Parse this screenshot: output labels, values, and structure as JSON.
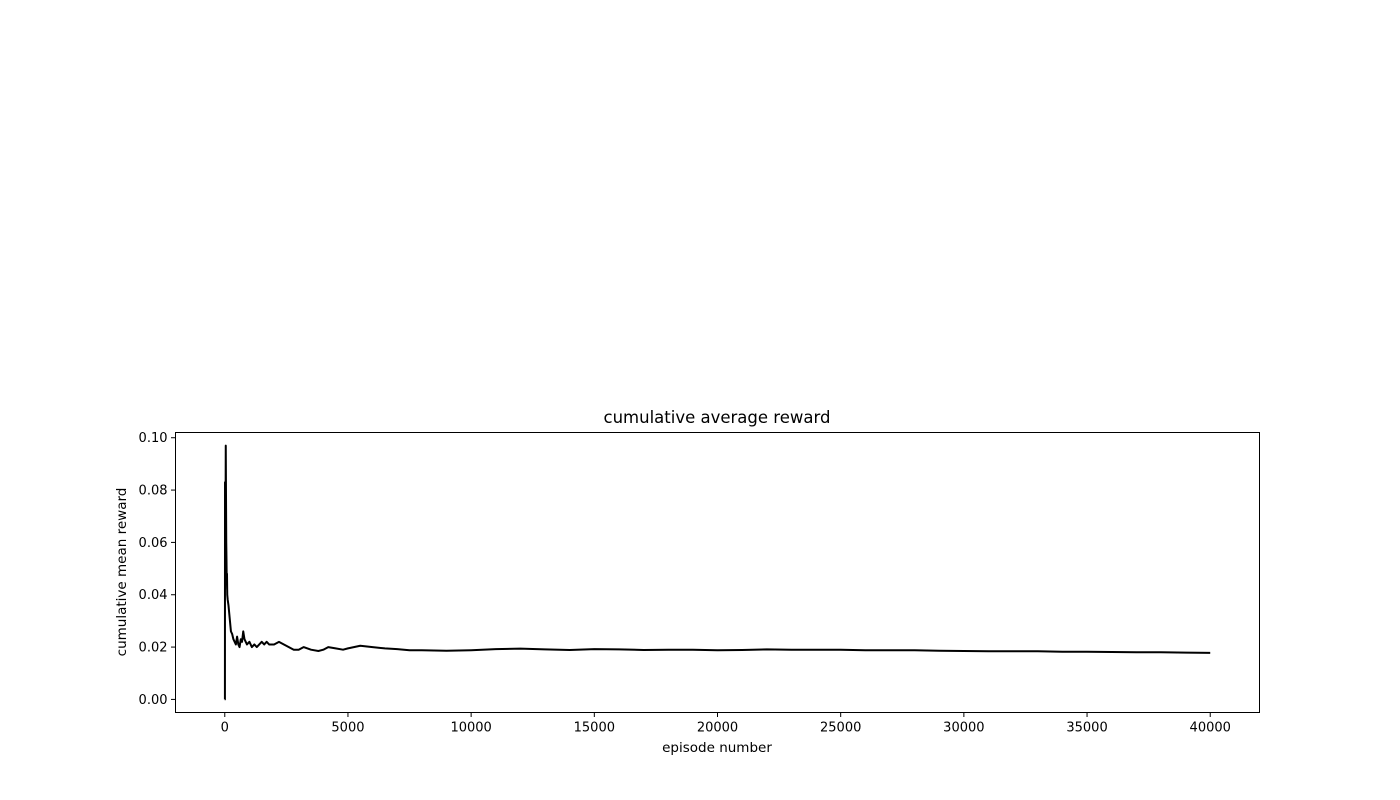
{
  "chart_data": {
    "type": "line",
    "title": "cumulative average reward",
    "xlabel": "episode number",
    "ylabel": "cumulative mean reward",
    "xlim": [
      -2000,
      42000
    ],
    "ylim": [
      -0.005,
      0.102
    ],
    "xticks": [
      0,
      5000,
      10000,
      15000,
      20000,
      25000,
      30000,
      35000,
      40000
    ],
    "xtick_labels": [
      "0",
      "5000",
      "10000",
      "15000",
      "20000",
      "25000",
      "30000",
      "35000",
      "40000"
    ],
    "yticks": [
      0.0,
      0.02,
      0.04,
      0.06,
      0.08,
      0.1
    ],
    "ytick_labels": [
      "0.00",
      "0.02",
      "0.04",
      "0.06",
      "0.08",
      "0.10"
    ],
    "grid": false,
    "legend": "none",
    "series": [
      {
        "color": "#000000",
        "x": [
          0,
          6,
          10,
          12,
          20,
          30,
          40,
          50,
          60,
          70,
          80,
          90,
          100,
          120,
          150,
          200,
          250,
          300,
          350,
          400,
          450,
          500,
          550,
          600,
          650,
          700,
          750,
          800,
          900,
          1000,
          1100,
          1200,
          1300,
          1400,
          1500,
          1600,
          1700,
          1800,
          2000,
          2200,
          2400,
          2600,
          2800,
          3000,
          3200,
          3500,
          3800,
          4000,
          4200,
          4500,
          4800,
          5000,
          5500,
          6000,
          6500,
          7000,
          7500,
          8000,
          9000,
          10000,
          11000,
          12000,
          13000,
          14000,
          15000,
          16000,
          17000,
          18000,
          19000,
          20000,
          21000,
          22000,
          23000,
          24000,
          25000,
          26000,
          27000,
          28000,
          29000,
          30000,
          31000,
          32000,
          33000,
          34000,
          35000,
          36000,
          37000,
          38000,
          39000,
          40000
        ],
        "y": [
          0.0,
          0.0,
          0.083,
          0.042,
          0.05,
          0.065,
          0.097,
          0.078,
          0.06,
          0.053,
          0.045,
          0.048,
          0.04,
          0.038,
          0.036,
          0.031,
          0.026,
          0.025,
          0.023,
          0.022,
          0.021,
          0.024,
          0.021,
          0.02,
          0.023,
          0.022,
          0.026,
          0.023,
          0.021,
          0.022,
          0.02,
          0.021,
          0.02,
          0.021,
          0.022,
          0.021,
          0.022,
          0.021,
          0.021,
          0.022,
          0.021,
          0.02,
          0.019,
          0.019,
          0.02,
          0.019,
          0.0185,
          0.019,
          0.02,
          0.0195,
          0.019,
          0.0195,
          0.0205,
          0.02,
          0.0195,
          0.0192,
          0.0188,
          0.0188,
          0.0186,
          0.0188,
          0.0192,
          0.0194,
          0.0191,
          0.0189,
          0.0192,
          0.0191,
          0.0189,
          0.019,
          0.019,
          0.0188,
          0.0189,
          0.0191,
          0.019,
          0.019,
          0.019,
          0.0188,
          0.0188,
          0.0188,
          0.0186,
          0.0185,
          0.0184,
          0.0184,
          0.0184,
          0.0182,
          0.0182,
          0.0181,
          0.018,
          0.018,
          0.0179,
          0.0178
        ]
      }
    ]
  }
}
